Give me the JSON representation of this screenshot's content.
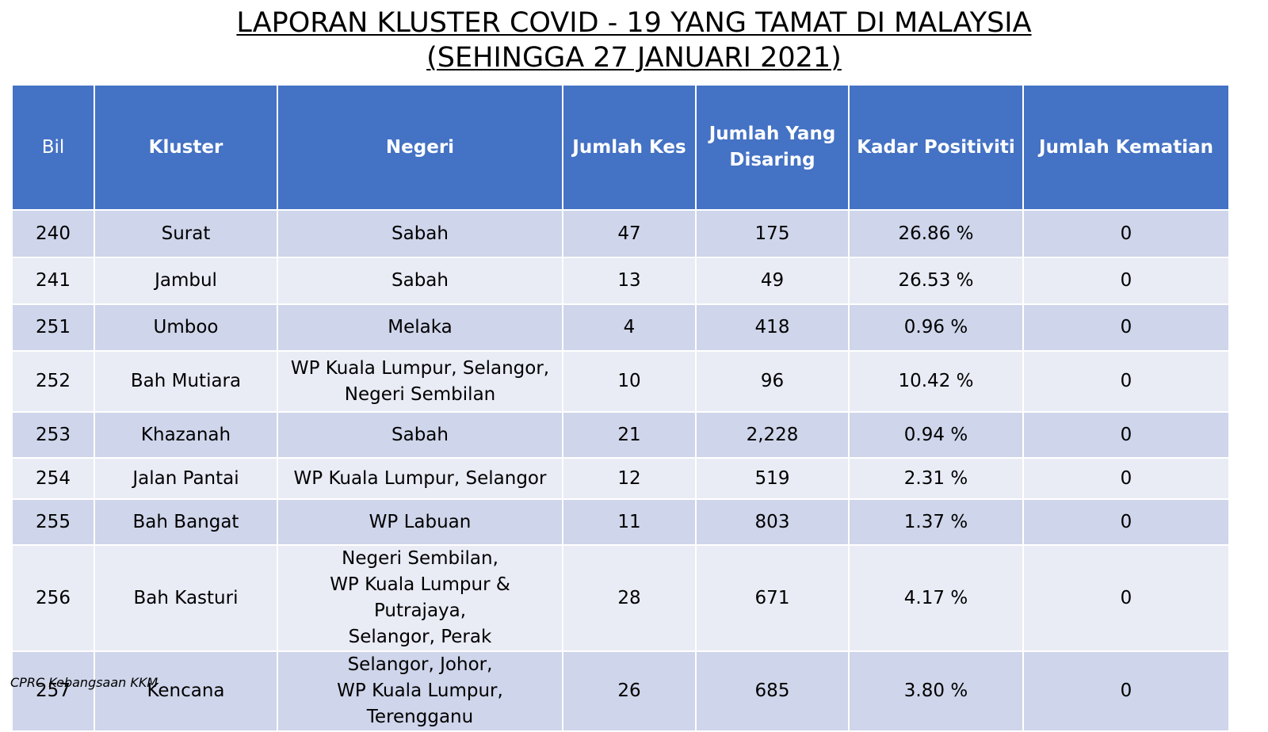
{
  "title_line1": "LAPORAN KLUSTER COVID - 19 YANG TAMAT DI MALAYSIA",
  "title_line2": "(SEHINGGA 27 JANUARI 2021)",
  "headers": {
    "bil": "Bil",
    "kluster": "Kluster",
    "negeri": "Negeri",
    "jumlah_kes": "Jumlah Kes",
    "jumlah_disaring": "Jumlah Yang\nDisaring",
    "kadar_positiviti": "Kadar Positiviti",
    "jumlah_kematian": "Jumlah Kematian"
  },
  "rows": [
    {
      "bil": "240",
      "kluster": "Surat",
      "negeri": "Sabah",
      "kes": "47",
      "disaring": "175",
      "positiviti": "26.86 %",
      "kematian": "0"
    },
    {
      "bil": "241",
      "kluster": "Jambul",
      "negeri": "Sabah",
      "kes": "13",
      "disaring": "49",
      "positiviti": "26.53 %",
      "kematian": "0"
    },
    {
      "bil": "251",
      "kluster": "Umboo",
      "negeri": "Melaka",
      "kes": "4",
      "disaring": "418",
      "positiviti": "0.96 %",
      "kematian": "0"
    },
    {
      "bil": "252",
      "kluster": "Bah Mutiara",
      "negeri": "WP Kuala Lumpur, Selangor,\nNegeri Sembilan",
      "kes": "10",
      "disaring": "96",
      "positiviti": "10.42 %",
      "kematian": "0"
    },
    {
      "bil": "253",
      "kluster": "Khazanah",
      "negeri": "Sabah",
      "kes": "21",
      "disaring": "2,228",
      "positiviti": "0.94 %",
      "kematian": "0"
    },
    {
      "bil": "254",
      "kluster": "Jalan Pantai",
      "negeri": "WP Kuala Lumpur, Selangor",
      "kes": "12",
      "disaring": "519",
      "positiviti": "2.31 %",
      "kematian": "0"
    },
    {
      "bil": "255",
      "kluster": "Bah Bangat",
      "negeri": "WP Labuan",
      "kes": "11",
      "disaring": "803",
      "positiviti": "1.37 %",
      "kematian": "0"
    },
    {
      "bil": "256",
      "kluster": "Bah Kasturi",
      "negeri": "Negeri Sembilan,\nWP Kuala Lumpur & Putrajaya,\nSelangor, Perak",
      "kes": "28",
      "disaring": "671",
      "positiviti": "4.17 %",
      "kematian": "0"
    },
    {
      "bil": "257",
      "kluster": "Kencana",
      "negeri": "Selangor,  Johor,\nWP Kuala Lumpur, Terengganu",
      "kes": "26",
      "disaring": "685",
      "positiviti": "3.80 %",
      "kematian": "0"
    }
  ],
  "footer": "CPRC Kebangsaan KKM",
  "colors": {
    "header_bg": "#4472c4",
    "row_dark": "#cfd5ea",
    "row_light": "#e9ebf5"
  }
}
